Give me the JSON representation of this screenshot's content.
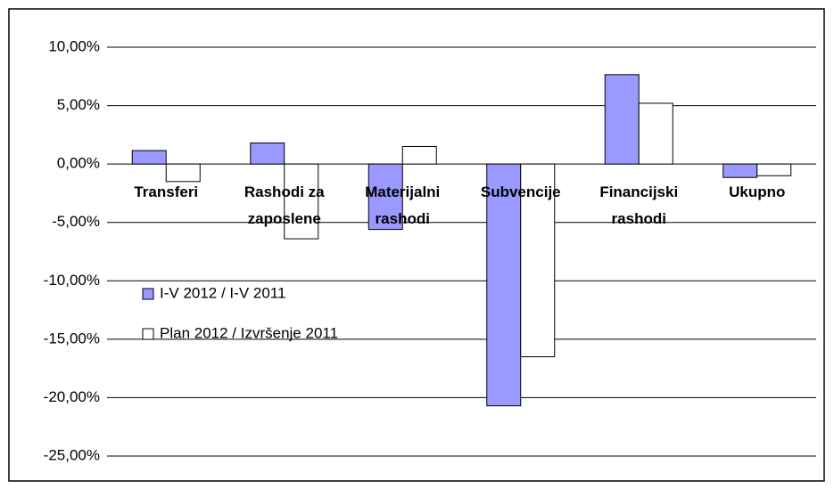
{
  "chart_data": {
    "type": "bar",
    "categories": [
      "Transferi",
      "Rashodi za zaposlene",
      "Materijalni rashodi",
      "Subvencije",
      "Financijski rashodi",
      "Ukupno"
    ],
    "series": [
      {
        "name": "I-V 2012 / I-V 2011",
        "color": "#9999ff",
        "values": [
          1.15,
          1.8,
          -5.6,
          -20.7,
          7.65,
          -1.15
        ]
      },
      {
        "name": "Plan 2012 / Izvršenje 2011",
        "color": "#ffffff",
        "values": [
          -1.5,
          -6.4,
          1.5,
          -16.5,
          5.2,
          -1.0
        ]
      }
    ],
    "ylim": [
      -25,
      10
    ],
    "yticks": [
      {
        "value": -25,
        "label": "-25,00%"
      },
      {
        "value": -20,
        "label": "-20,00%"
      },
      {
        "value": -15,
        "label": "-15,00%"
      },
      {
        "value": -10,
        "label": "-10,00%"
      },
      {
        "value": -5,
        "label": "-5,00%"
      },
      {
        "value": 0,
        "label": "0,00%"
      },
      {
        "value": 5,
        "label": "5,00%"
      },
      {
        "value": 10,
        "label": "10,00%"
      }
    ],
    "grid": true
  }
}
